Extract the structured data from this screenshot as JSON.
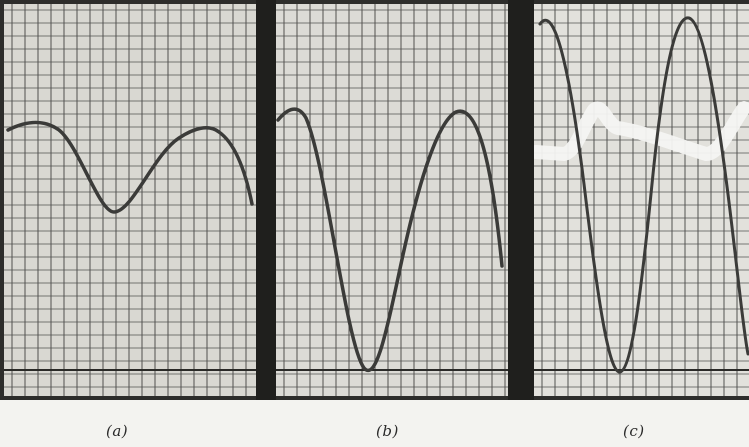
{
  "figure": {
    "panels": [
      {
        "id": "a",
        "caption": "(a)"
      },
      {
        "id": "b",
        "caption": "(b)"
      },
      {
        "id": "c",
        "caption": "(c)"
      }
    ]
  },
  "colors": {
    "paper_a": "#d9d8d2",
    "paper_b": "#dcdbd6",
    "paper_c": "#e2e1dc",
    "grid": "#3a3a38",
    "trace": "#3b3b39",
    "bright_trace": "#f4f4f2"
  }
}
